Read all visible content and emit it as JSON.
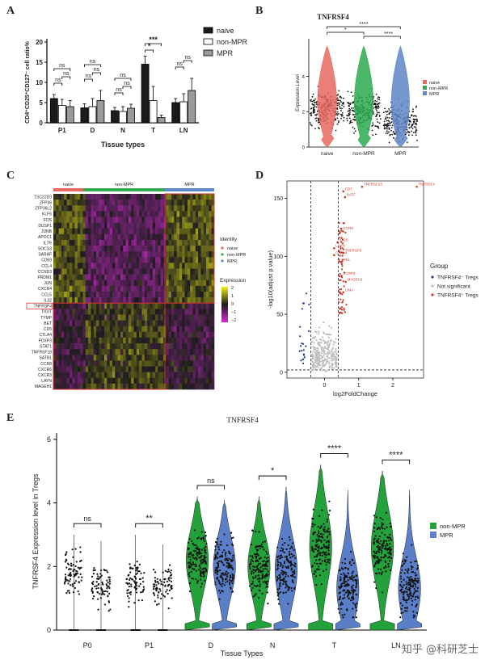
{
  "panel_letters": [
    "A",
    "B",
    "C",
    "D",
    "E"
  ],
  "watermark": "知乎 @科研芝士",
  "colors": {
    "naive": "#1a1a1a",
    "nonmpr_bar": "#ffffff",
    "mpr_bar": "#9a9a9a",
    "violin_naive": "#f07a6e",
    "violin_nonmpr": "#2daa4e",
    "violin_mpr": "#5f86c6",
    "e_nonmpr": "#23a13b",
    "e_mpr": "#5a7fc8",
    "volcano_down": "#2b3f8f",
    "volcano_ns": "#bdbdbd",
    "volcano_up": "#c9392b",
    "heat_high": "#f2f016",
    "heat_mid": "#1c1c1c",
    "heat_low": "#d62ad6",
    "strip_naive": "#e8695f",
    "strip_nonmpr": "#2fa84f",
    "strip_mpr": "#5f86c6",
    "highlight_box": "#d9332b"
  },
  "chart_data": [
    {
      "id": "A",
      "type": "bar",
      "ylabel": "CD4⁺CD25⁺CD127⁻ cell ratio%",
      "xlabel": "Tissue types",
      "categories": [
        "P1",
        "D",
        "N",
        "T",
        "LN"
      ],
      "ylim": [
        0,
        20
      ],
      "yticks": [
        0,
        5,
        10,
        15,
        20
      ],
      "series": [
        {
          "name": "naive",
          "values": [
            6.0,
            3.7,
            3.0,
            14.5,
            5.0
          ],
          "errors": [
            1.0,
            1.0,
            0.8,
            2.0,
            1.0
          ]
        },
        {
          "name": "non-MPR",
          "values": [
            4.3,
            4.0,
            2.8,
            5.5,
            5.2
          ],
          "errors": [
            1.5,
            2.0,
            1.2,
            3.5,
            2.0
          ]
        },
        {
          "name": "MPR",
          "values": [
            4.0,
            5.5,
            3.6,
            1.3,
            8.0
          ],
          "errors": [
            1.5,
            2.5,
            1.0,
            0.6,
            3.0
          ]
        }
      ],
      "significance": [
        "ns",
        "ns",
        "ns",
        "ns",
        "ns",
        "ns",
        "ns",
        "ns",
        "ns",
        "***",
        "*",
        "ns",
        "ns"
      ]
    },
    {
      "id": "B",
      "type": "violin",
      "title": "TNFRSF4",
      "ylabel": "Expression Level",
      "categories": [
        "naive",
        "non-MPR",
        "MPR"
      ],
      "yticks": [
        0,
        2,
        4
      ],
      "ylim": [
        0,
        6
      ],
      "medians": [
        2.2,
        2.0,
        1.4
      ],
      "legend": [
        "naive",
        "non-MPR",
        "MPR"
      ],
      "significance": [
        "*",
        "****",
        "****"
      ]
    },
    {
      "id": "C",
      "type": "heatmap",
      "column_groups": [
        "naive",
        "non-MPR",
        "MPR"
      ],
      "genes": [
        "TSC22D3",
        "ZFP36",
        "ZFP36L2",
        "KLF6",
        "FOS",
        "DUSP1",
        "JUNB",
        "APOC1",
        "IL7R",
        "SOCS3",
        "SARAF",
        "CD69",
        "CCL4",
        "CCND3",
        "PRDM1",
        "JUN",
        "CXCR4",
        "CCL5",
        "IL32",
        "TNFRSF4",
        "TIGIT",
        "TYMP",
        "BET",
        "CD5",
        "CTLA4",
        "FOXP3",
        "STAT1",
        "TNFRSF18",
        "SATB1",
        "CCR8",
        "CXCR6",
        "CXCR3",
        "LAYN",
        "MAGEH1"
      ],
      "highlight_gene": "TNFRSF4",
      "identity_title": "Identity",
      "identity_legend": [
        "naive",
        "non-MPR",
        "MPR"
      ],
      "expression_title": "Expression",
      "expression_ticks": [
        2,
        1,
        0,
        -1,
        -2
      ]
    },
    {
      "id": "D",
      "type": "scatter",
      "xlabel": "log2FoldChange",
      "ylabel": "-log10(adjust p value)",
      "xlim": [
        -1.1,
        2.9
      ],
      "ylim": [
        -5,
        165
      ],
      "xticks": [
        0,
        1,
        2
      ],
      "yticks": [
        0,
        50,
        100,
        150
      ],
      "vlines": [
        -0.4,
        0.4
      ],
      "hline": 2,
      "legend_title": "Group",
      "legend": [
        "TNFRSF4⁻ Tregs",
        "Not significant",
        "TNFRSF4⁺ Tregs"
      ],
      "labels": [
        {
          "text": "TNFRSF18",
          "x": 1.1,
          "y": 160
        },
        {
          "text": "TNFRSF4",
          "x": 2.7,
          "y": 160
        },
        {
          "text": "CD7",
          "x": 0.55,
          "y": 156
        },
        {
          "text": "BATF",
          "x": 0.6,
          "y": 151
        },
        {
          "text": "CCR8",
          "x": 0.5,
          "y": 122
        },
        {
          "text": "ICOS",
          "x": 0.38,
          "y": 112
        },
        {
          "text": "LAYN",
          "x": 0.28,
          "y": 107
        },
        {
          "text": "CTLA4",
          "x": 0.28,
          "y": 101
        },
        {
          "text": "TNFRSF8",
          "x": 0.55,
          "y": 103
        },
        {
          "text": "REL",
          "x": 0.5,
          "y": 95
        },
        {
          "text": "FOXP3",
          "x": 0.5,
          "y": 83
        },
        {
          "text": "MAGEH1",
          "x": 0.62,
          "y": 78
        },
        {
          "text": "LIMA",
          "x": 0.55,
          "y": 69
        }
      ]
    },
    {
      "id": "E",
      "type": "violin",
      "title": "TNFRSF4",
      "ylabel": "TNFRSF4 Expression level in Tregs",
      "xlabel": "Tissue Types",
      "categories": [
        "P0",
        "P1",
        "D",
        "N",
        "T",
        "LN"
      ],
      "yticks": [
        0,
        2,
        4,
        6
      ],
      "ylim": [
        0,
        6.2
      ],
      "series": [
        {
          "name": "non-MPR",
          "maxes": [
            3.0,
            3.0,
            4.2,
            4.2,
            5.2,
            5.0
          ],
          "medians": [
            1.8,
            1.5,
            2.2,
            2.0,
            2.6,
            2.6
          ],
          "has_violin": [
            false,
            false,
            true,
            true,
            true,
            true
          ]
        },
        {
          "name": "MPR",
          "maxes": [
            2.8,
            2.7,
            4.1,
            4.5,
            4.4,
            4.4
          ],
          "medians": [
            1.4,
            1.4,
            2.0,
            1.9,
            1.3,
            1.3
          ],
          "has_violin": [
            false,
            false,
            true,
            true,
            true,
            true
          ]
        }
      ],
      "significance": [
        "ns",
        "**",
        "ns",
        "*",
        "****",
        "****"
      ],
      "legend": [
        "non-MPR",
        "MPR"
      ]
    }
  ]
}
